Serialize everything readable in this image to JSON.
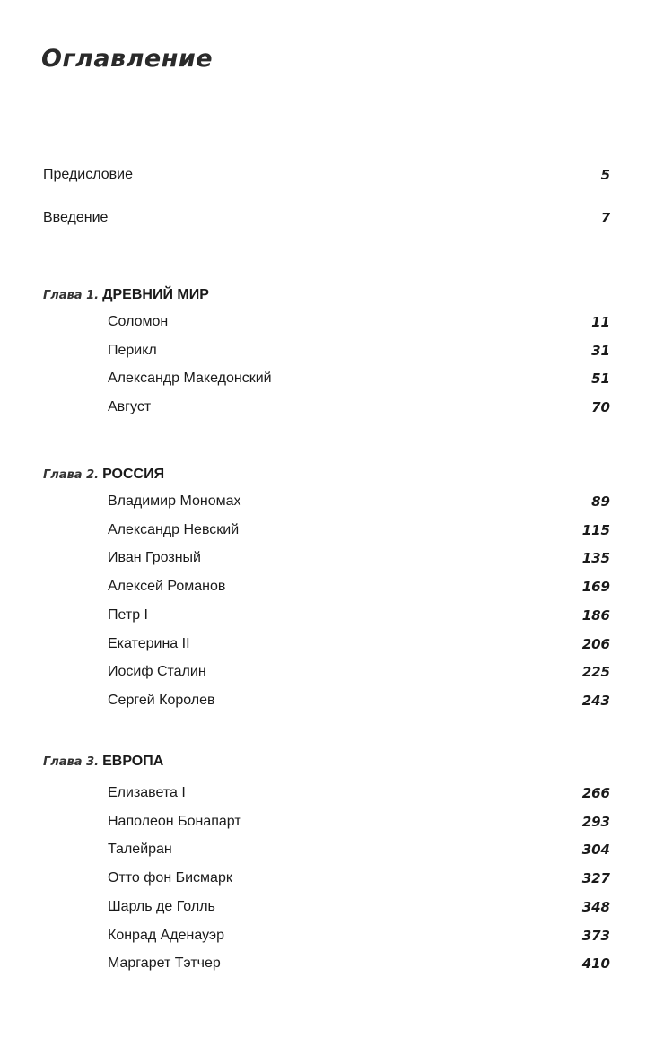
{
  "title": "Оглавление",
  "front_matter": [
    {
      "label": "Предисловие",
      "page": "5"
    },
    {
      "label": "Введение",
      "page": "7"
    }
  ],
  "chapters": [
    {
      "prefix": "Глава 1.",
      "name": "ДРЕВНИЙ МИР",
      "entries": [
        {
          "label": "Соломон",
          "page": "11"
        },
        {
          "label": "Перикл",
          "page": "31"
        },
        {
          "label": "Александр Македонский",
          "page": "51"
        },
        {
          "label": "Август",
          "page": "70"
        }
      ]
    },
    {
      "prefix": "Глава 2.",
      "name": "РОССИЯ",
      "entries": [
        {
          "label": "Владимир Мономах",
          "page": "89"
        },
        {
          "label": "Александр Невский",
          "page": "115"
        },
        {
          "label": "Иван Грозный",
          "page": "135"
        },
        {
          "label": "Алексей Романов",
          "page": "169"
        },
        {
          "label": "Петр I",
          "page": "186"
        },
        {
          "label": "Екатерина II",
          "page": "206"
        },
        {
          "label": "Иосиф Сталин",
          "page": "225"
        },
        {
          "label": "Сергей Королев",
          "page": "243"
        }
      ]
    },
    {
      "prefix": "Глава 3.",
      "name": "ЕВРОПА",
      "entries": [
        {
          "label": "Елизавета I",
          "page": "266"
        },
        {
          "label": "Наполеон Бонапарт",
          "page": "293"
        },
        {
          "label": "Талейран",
          "page": "304"
        },
        {
          "label": "Отто фон Бисмарк",
          "page": "327"
        },
        {
          "label": "Шарль де Голль",
          "page": "348"
        },
        {
          "label": "Конрад Аденауэр",
          "page": "373"
        },
        {
          "label": "Маргарет Тэтчер",
          "page": "410"
        }
      ]
    }
  ]
}
